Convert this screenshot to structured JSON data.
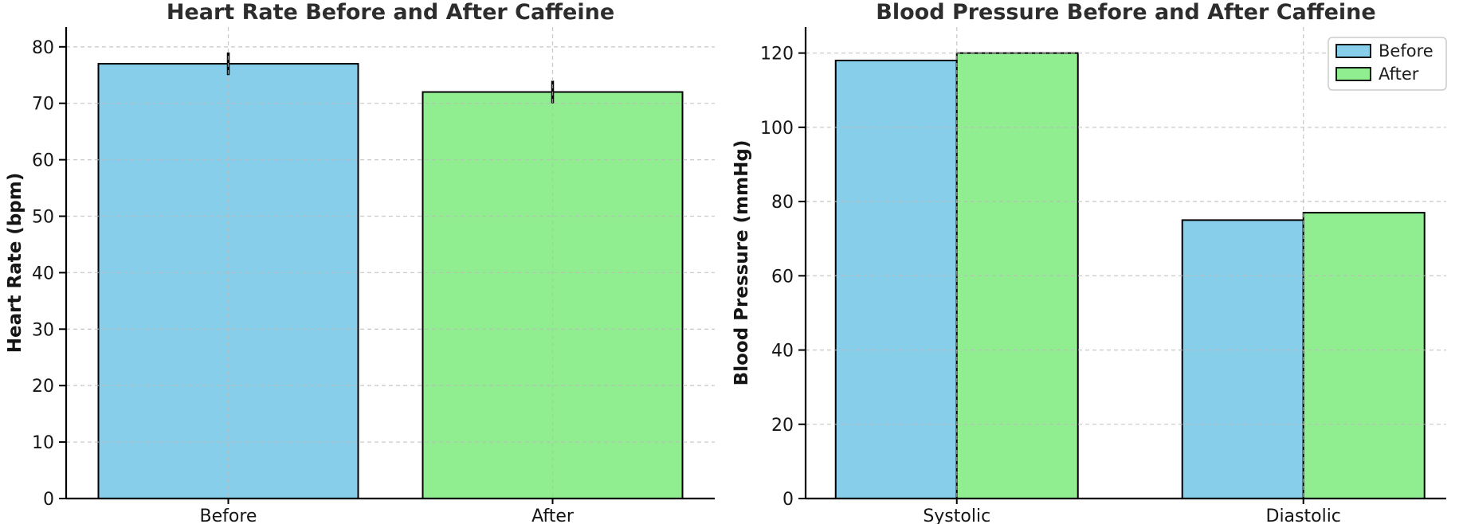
{
  "figure": {
    "background": "#ffffff",
    "title_color": "#2d2d2d",
    "text_color": "#151515",
    "grid_color": "#b9b9b9",
    "bar_edge_color": "#000000",
    "before_color": "#87CEEB",
    "after_color": "#90EE90"
  },
  "chart_data": [
    {
      "type": "bar",
      "title": "Heart Rate Before and After Caffeine",
      "xlabel": "",
      "ylabel": "Heart Rate (bpm)",
      "categories": [
        "Before",
        "After"
      ],
      "series": [
        {
          "name": "Heart Rate",
          "values": [
            77,
            72
          ],
          "errors": [
            2,
            2
          ],
          "colors": [
            "#87CEEB",
            "#90EE90"
          ]
        }
      ],
      "ylim": [
        0,
        83.5
      ],
      "yticks": [
        0,
        10,
        20,
        30,
        40,
        50,
        60,
        70,
        80
      ],
      "grid": "dashed",
      "legend": null
    },
    {
      "type": "bar",
      "title": "Blood Pressure Before and After Caffeine",
      "xlabel": "",
      "ylabel": "Blood Pressure (mmHg)",
      "categories": [
        "Systolic",
        "Diastolic"
      ],
      "series": [
        {
          "name": "Before",
          "values": [
            118,
            75
          ],
          "color": "#87CEEB"
        },
        {
          "name": "After",
          "values": [
            120,
            77
          ],
          "color": "#90EE90"
        }
      ],
      "ylim": [
        0,
        127
      ],
      "yticks": [
        0,
        20,
        40,
        60,
        80,
        100,
        120
      ],
      "grid": "dashed",
      "legend": {
        "position": "upper right",
        "entries": [
          "Before",
          "After"
        ]
      }
    }
  ]
}
